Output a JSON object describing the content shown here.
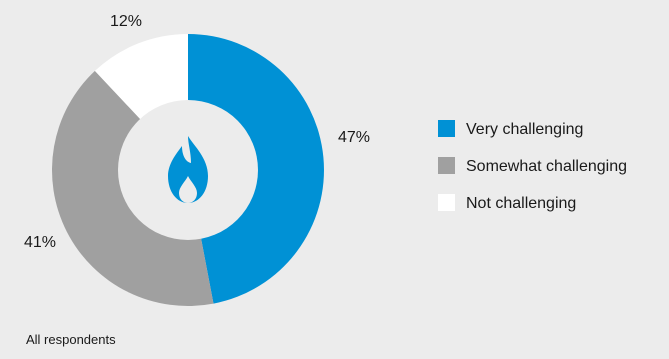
{
  "chart_data": {
    "type": "pie",
    "style": "donut",
    "categories": [
      "Very challenging",
      "Somewhat challenging",
      "Not challenging"
    ],
    "values": [
      47,
      41,
      12
    ],
    "data_labels": [
      "47%",
      "41%",
      "12%"
    ],
    "colors": [
      "#0091d5",
      "#a0a0a0",
      "#ffffff"
    ],
    "legend_position": "right",
    "center_icon": "flame-icon",
    "footnote": "All respondents"
  }
}
